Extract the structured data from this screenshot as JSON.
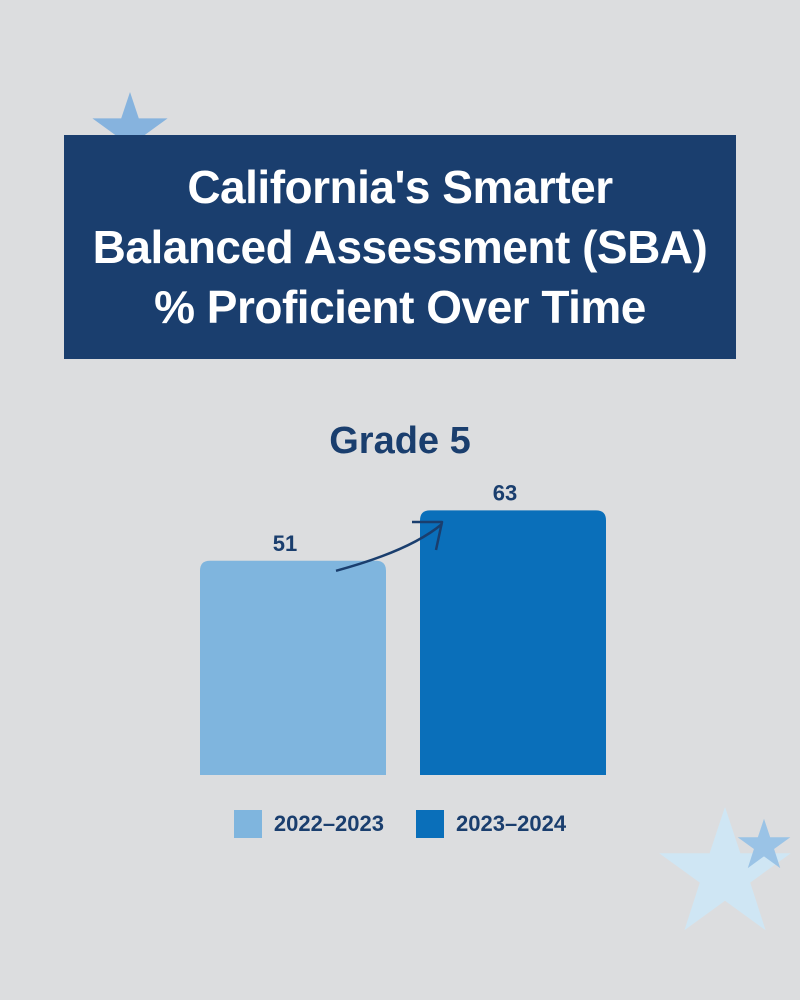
{
  "title_lines": [
    "California's Smarter",
    "Balanced Assessment (SBA)",
    "% Proficient Over Time"
  ],
  "chart_data": {
    "type": "bar",
    "subtitle": "Grade 5",
    "categories": [
      "2022–2023",
      "2023–2024"
    ],
    "values": [
      51,
      63
    ],
    "colors": [
      "#7fb5de",
      "#0a6fba"
    ],
    "ylim": [
      0,
      100
    ],
    "legend_position": "bottom",
    "grid": false,
    "annotation": "arrow-up-trend"
  },
  "colors": {
    "background": "#dcdddf",
    "title_box": "#1a3e6e",
    "text_dark": "#1a3e6e"
  },
  "decorations": [
    "star-icon",
    "star-icon",
    "star-icon"
  ]
}
